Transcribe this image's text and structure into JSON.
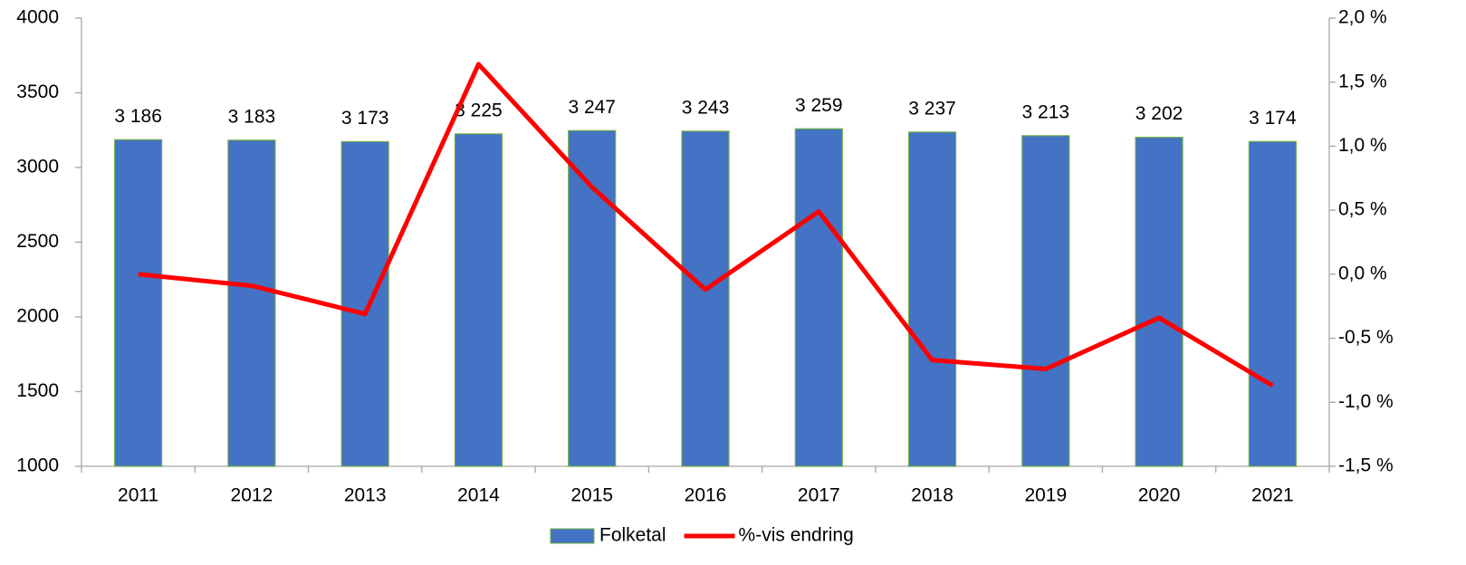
{
  "chart_data": {
    "type": "bar_line",
    "categories": [
      "2011",
      "2012",
      "2013",
      "2014",
      "2015",
      "2016",
      "2017",
      "2018",
      "2019",
      "2020",
      "2021"
    ],
    "series": [
      {
        "name": "Folketal",
        "type": "bar",
        "color": "#4472c4",
        "edge_color": "#70ad47",
        "values": [
          3186,
          3183,
          3173,
          3225,
          3247,
          3243,
          3259,
          3237,
          3213,
          3202,
          3174
        ],
        "value_labels": [
          "3 186",
          "3 183",
          "3 173",
          "3 225",
          "3 247",
          "3 243",
          "3 259",
          "3 237",
          "3 213",
          "3 202",
          "3 174"
        ]
      },
      {
        "name": "%-vis endring",
        "type": "line",
        "axis": "y2",
        "color": "#ff0000",
        "values": [
          0.0,
          -0.09,
          -0.31,
          1.64,
          0.68,
          -0.12,
          0.49,
          -0.67,
          -0.74,
          -0.34,
          -0.87
        ]
      }
    ],
    "ylim": [
      1000,
      4000
    ],
    "yticks": [
      1000,
      1500,
      2000,
      2500,
      3000,
      3500,
      4000
    ],
    "y2lim": [
      -1.5,
      2.0
    ],
    "y2ticks": [
      {
        "value": -1.5,
        "label": "-1,5 %"
      },
      {
        "value": -1.0,
        "label": "-1,0 %"
      },
      {
        "value": -0.5,
        "label": "-0,5 %"
      },
      {
        "value": 0.0,
        "label": "0,0 %"
      },
      {
        "value": 0.5,
        "label": "0,5 %"
      },
      {
        "value": 1.0,
        "label": "1,0 %"
      },
      {
        "value": 1.5,
        "label": "1,5 %"
      },
      {
        "value": 2.0,
        "label": "2,0 %"
      }
    ],
    "grid": false,
    "legend": "bottom"
  }
}
